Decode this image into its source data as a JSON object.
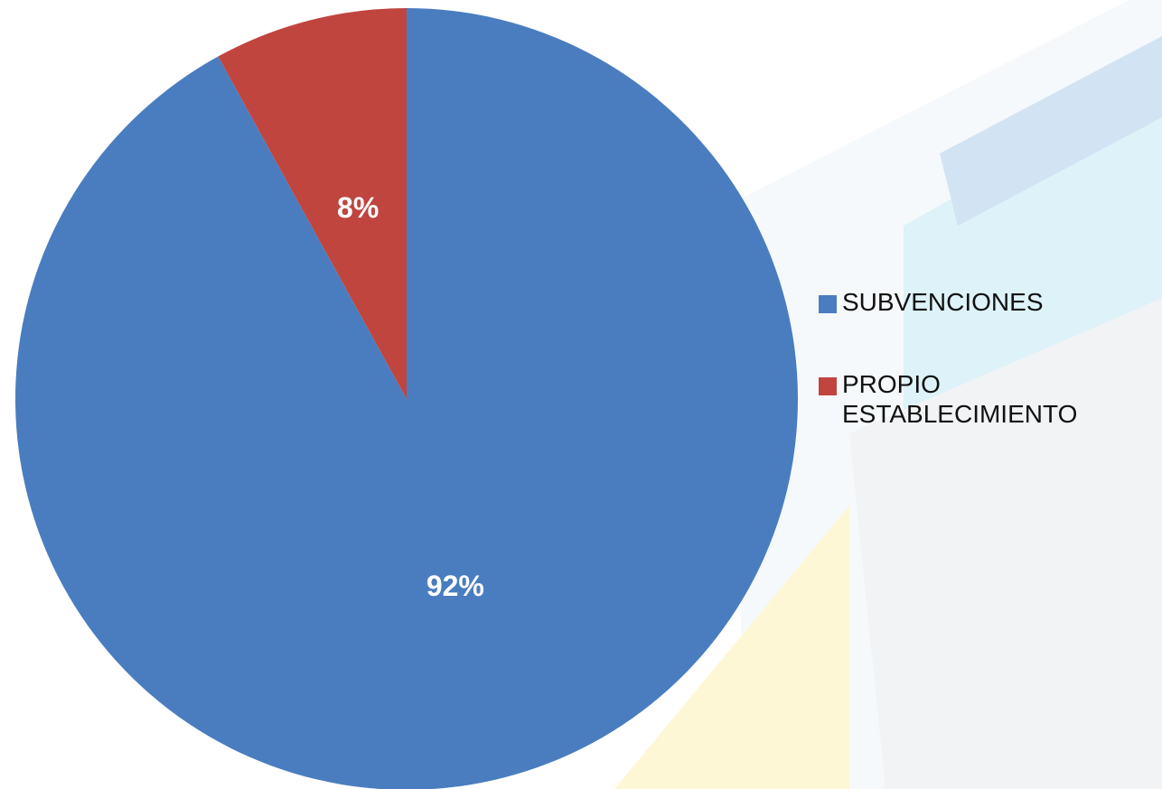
{
  "chart_data": {
    "type": "pie",
    "categories": [
      "SUBVENCIONES",
      "PROPIO ESTABLECIMIENTO"
    ],
    "values": [
      92,
      8
    ],
    "value_labels": [
      "92%",
      "8%"
    ],
    "colors": [
      "#4a7dbf",
      "#c0453f"
    ],
    "legend": "right"
  }
}
